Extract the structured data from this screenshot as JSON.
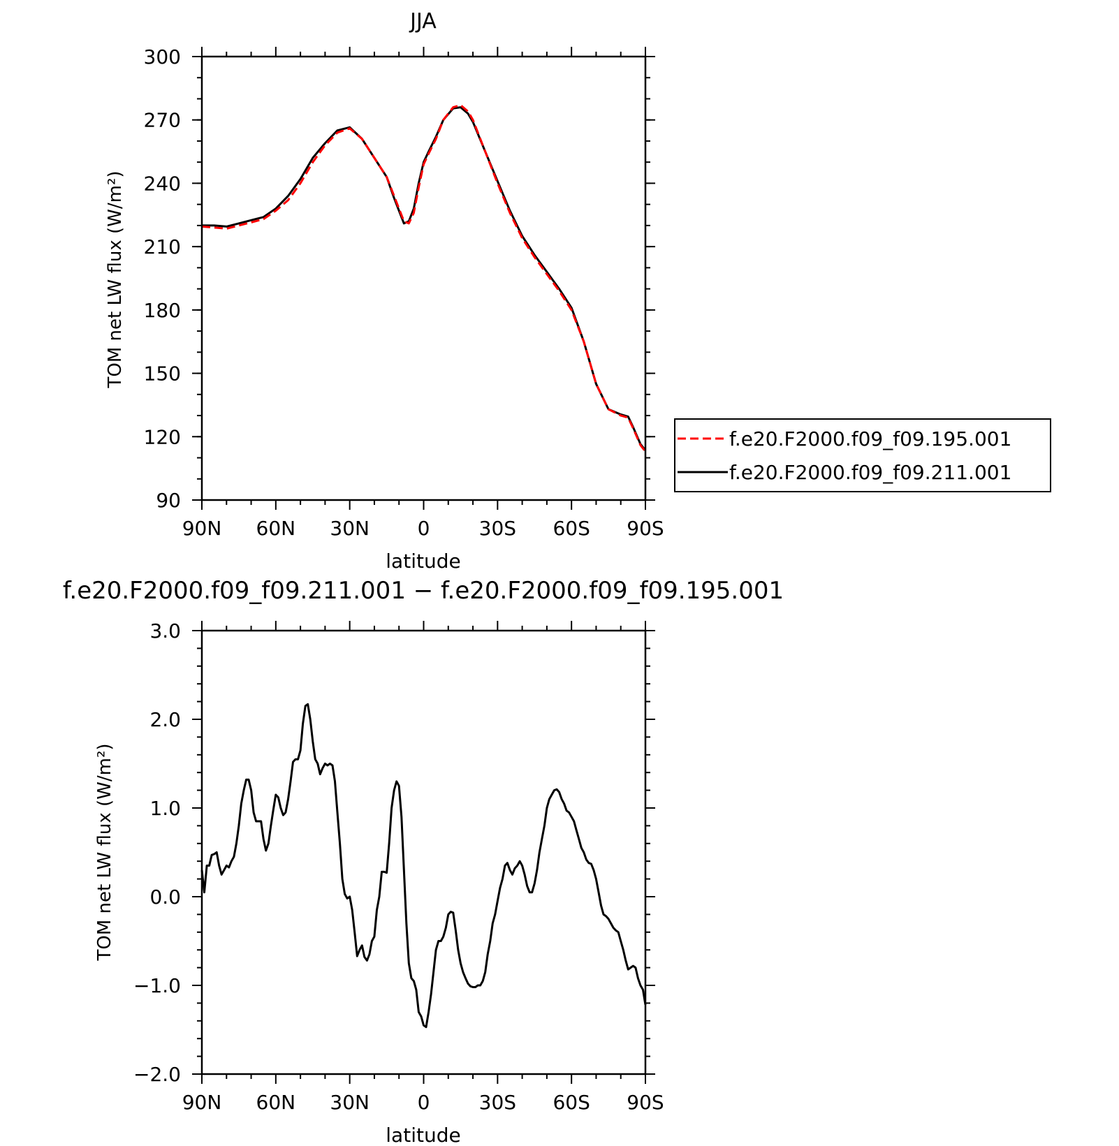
{
  "chart_data": [
    {
      "type": "line",
      "title": "JJA",
      "xlabel": "latitude",
      "ylabel": "TOM net LW flux (W/m²)",
      "xlim": [
        90,
        -90
      ],
      "ylim": [
        90,
        300
      ],
      "xticks": [
        {
          "value": 90,
          "label": "90N"
        },
        {
          "value": 60,
          "label": "60N"
        },
        {
          "value": 30,
          "label": "30N"
        },
        {
          "value": 0,
          "label": "0"
        },
        {
          "value": -30,
          "label": "30S"
        },
        {
          "value": -60,
          "label": "60S"
        },
        {
          "value": -90,
          "label": "90S"
        }
      ],
      "yticks": [
        90,
        120,
        150,
        180,
        210,
        240,
        270,
        300
      ],
      "legend_position": "right",
      "series": [
        {
          "name": "f.e20.F2000.f09_f09.195.001",
          "color": "#ff0000",
          "dash": "dashed",
          "x": [
            90,
            85,
            80,
            75,
            70,
            65,
            60,
            55,
            50,
            45,
            40,
            35,
            30,
            25,
            20,
            15,
            12,
            10,
            8,
            6,
            4,
            2,
            0,
            -2,
            -5,
            -8,
            -12,
            -15,
            -18,
            -20,
            -25,
            -30,
            -35,
            -40,
            -45,
            -50,
            -55,
            -60,
            -65,
            -70,
            -75,
            -80,
            -83,
            -85,
            -88,
            -90
          ],
          "y": [
            219.5,
            219,
            218.5,
            220,
            221.5,
            223,
            227,
            232,
            240,
            250,
            258,
            264,
            266,
            261,
            252,
            243,
            234,
            228,
            222,
            221,
            226,
            238,
            249,
            254,
            261,
            270,
            276,
            277,
            274,
            270,
            255,
            240,
            226,
            214,
            205,
            197,
            189,
            180,
            165,
            145,
            133,
            130,
            129,
            124,
            116,
            113
          ]
        },
        {
          "name": "f.e20.F2000.f09_f09.211.001",
          "color": "#000000",
          "dash": "solid",
          "x": [
            90,
            85,
            80,
            75,
            70,
            65,
            60,
            55,
            50,
            45,
            40,
            35,
            30,
            25,
            20,
            15,
            12,
            10,
            8,
            6,
            4,
            2,
            0,
            -2,
            -5,
            -8,
            -12,
            -15,
            -18,
            -20,
            -25,
            -30,
            -35,
            -40,
            -45,
            -50,
            -55,
            -60,
            -65,
            -70,
            -75,
            -80,
            -83,
            -85,
            -88,
            -90
          ],
          "y": [
            220,
            220,
            219.5,
            221,
            222.5,
            224,
            228,
            234,
            242,
            252,
            259,
            265,
            266.5,
            261,
            252,
            243,
            233,
            227,
            221,
            222,
            228,
            240,
            250,
            255,
            262,
            270,
            275.5,
            276,
            273,
            269,
            255,
            241,
            227,
            215,
            206,
            198,
            190,
            181,
            165,
            145,
            133,
            130.5,
            129.5,
            124.5,
            116.5,
            113.5
          ]
        }
      ]
    },
    {
      "type": "line",
      "title": "f.e20.F2000.f09_f09.211.001 − f.e20.F2000.f09_f09.195.001",
      "xlabel": "latitude",
      "ylabel": "TOM net LW flux (W/m²)",
      "xlim": [
        90,
        -90
      ],
      "ylim": [
        -2.0,
        3.0
      ],
      "xticks": [
        {
          "value": 90,
          "label": "90N"
        },
        {
          "value": 60,
          "label": "60N"
        },
        {
          "value": 30,
          "label": "30N"
        },
        {
          "value": 0,
          "label": "0"
        },
        {
          "value": -30,
          "label": "30S"
        },
        {
          "value": -60,
          "label": "60S"
        },
        {
          "value": -90,
          "label": "90S"
        }
      ],
      "yticks": [
        {
          "value": 3.0,
          "label": "3.0"
        },
        {
          "value": 2.0,
          "label": "2.0"
        },
        {
          "value": 1.0,
          "label": "1.0"
        },
        {
          "value": 0.0,
          "label": "0.0"
        },
        {
          "value": -1.0,
          "label": "−1.0"
        },
        {
          "value": -2.0,
          "label": "−2.0"
        }
      ],
      "series": [
        {
          "color": "#000000",
          "x": [
            90,
            89,
            88,
            87,
            86,
            85,
            84,
            83,
            82,
            81,
            80,
            79,
            78,
            77,
            76,
            75,
            74,
            73,
            72,
            71,
            70,
            69,
            68,
            67,
            66,
            65,
            64,
            63,
            62,
            61,
            60,
            59,
            58,
            57,
            56,
            55,
            54,
            53,
            52,
            51,
            50,
            49,
            48,
            47,
            46,
            45,
            44,
            43,
            42,
            41,
            40,
            39,
            38,
            37,
            36,
            35,
            34,
            33,
            32,
            31,
            30,
            29,
            28,
            27,
            26,
            25,
            24,
            23,
            22,
            21,
            20,
            19,
            18,
            17,
            16,
            15,
            14,
            13,
            12,
            11,
            10,
            9,
            8,
            7,
            6,
            5,
            4,
            3,
            2,
            1,
            0,
            -1,
            -2,
            -3,
            -4,
            -5,
            -6,
            -7,
            -8,
            -9,
            -10,
            -11,
            -12,
            -13,
            -14,
            -15,
            -16,
            -17,
            -18,
            -19,
            -20,
            -21,
            -22,
            -23,
            -24,
            -25,
            -26,
            -27,
            -28,
            -29,
            -30,
            -31,
            -32,
            -33,
            -34,
            -35,
            -36,
            -37,
            -38,
            -39,
            -40,
            -41,
            -42,
            -43,
            -44,
            -45,
            -46,
            -47,
            -48,
            -49,
            -50,
            -51,
            -52,
            -53,
            -54,
            -55,
            -56,
            -57,
            -58,
            -59,
            -60,
            -61,
            -62,
            -63,
            -64,
            -65,
            -66,
            -67,
            -68,
            -69,
            -70,
            -71,
            -72,
            -73,
            -74,
            -75,
            -76,
            -77,
            -78,
            -79,
            -80,
            -81,
            -82,
            -83,
            -84,
            -85,
            -86,
            -87,
            -88,
            -89,
            -90
          ],
          "y": [
            0.3,
            0.05,
            0.35,
            0.35,
            0.47,
            0.48,
            0.5,
            0.35,
            0.25,
            0.3,
            0.35,
            0.33,
            0.4,
            0.45,
            0.6,
            0.8,
            1.05,
            1.2,
            1.32,
            1.32,
            1.2,
            0.95,
            0.85,
            0.85,
            0.85,
            0.65,
            0.52,
            0.6,
            0.8,
            0.98,
            1.15,
            1.12,
            1.0,
            0.92,
            0.95,
            1.1,
            1.3,
            1.52,
            1.55,
            1.55,
            1.65,
            1.95,
            2.15,
            2.17,
            2.0,
            1.75,
            1.55,
            1.5,
            1.38,
            1.45,
            1.5,
            1.48,
            1.5,
            1.48,
            1.3,
            0.95,
            0.6,
            0.2,
            0.03,
            -0.02,
            0.0,
            -0.15,
            -0.4,
            -0.67,
            -0.6,
            -0.55,
            -0.68,
            -0.72,
            -0.65,
            -0.5,
            -0.45,
            -0.15,
            0.0,
            0.28,
            0.28,
            0.27,
            0.6,
            1.0,
            1.2,
            1.3,
            1.25,
            0.9,
            0.3,
            -0.3,
            -0.75,
            -0.92,
            -0.95,
            -1.05,
            -1.3,
            -1.35,
            -1.45,
            -1.47,
            -1.3,
            -1.1,
            -0.85,
            -0.6,
            -0.5,
            -0.5,
            -0.45,
            -0.35,
            -0.2,
            -0.17,
            -0.18,
            -0.38,
            -0.6,
            -0.75,
            -0.85,
            -0.92,
            -0.98,
            -1.01,
            -1.02,
            -1.02,
            -1.0,
            -1.0,
            -0.95,
            -0.85,
            -0.65,
            -0.5,
            -0.3,
            -0.2,
            -0.05,
            0.1,
            0.2,
            0.35,
            0.38,
            0.3,
            0.25,
            0.32,
            0.35,
            0.4,
            0.35,
            0.25,
            0.12,
            0.05,
            0.05,
            0.15,
            0.3,
            0.5,
            0.65,
            0.8,
            1.0,
            1.1,
            1.15,
            1.2,
            1.21,
            1.18,
            1.1,
            1.05,
            0.97,
            0.95,
            0.9,
            0.85,
            0.75,
            0.65,
            0.55,
            0.5,
            0.42,
            0.38,
            0.37,
            0.3,
            0.2,
            0.05,
            -0.1,
            -0.2,
            -0.22,
            -0.25,
            -0.3,
            -0.35,
            -0.38,
            -0.4,
            -0.5,
            -0.6,
            -0.72,
            -0.82,
            -0.8,
            -0.78,
            -0.8,
            -0.92,
            -1.0,
            -1.05,
            -1.22
          ]
        }
      ]
    }
  ]
}
